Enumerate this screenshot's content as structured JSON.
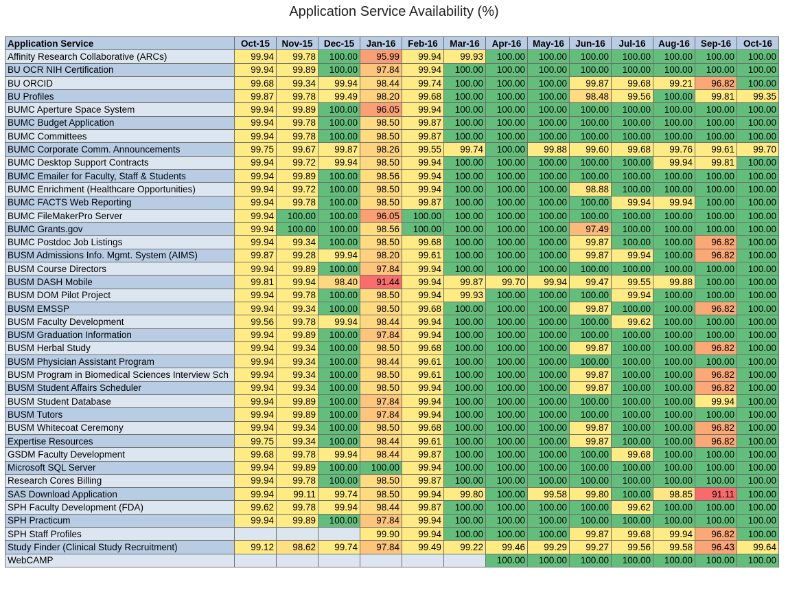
{
  "chart_data": {
    "type": "table",
    "title": "Application Service Availability (%)",
    "row_header": "Application Service",
    "columns": [
      "Oct-15",
      "Nov-15",
      "Dec-15",
      "Jan-16",
      "Feb-16",
      "Mar-16",
      "Apr-16",
      "May-16",
      "Jun-16",
      "Jul-16",
      "Aug-16",
      "Sep-16",
      "Oct-16"
    ],
    "rows": [
      {
        "service": "Affinity Research Collaborative (ARCs)",
        "values": [
          "99.94",
          "99.78",
          "100.00",
          "95.99",
          "99.94",
          "99.93",
          "100.00",
          "100.00",
          "100.00",
          "100.00",
          "100.00",
          "100.00",
          "100.00"
        ]
      },
      {
        "service": "BU OCR NIH Certification",
        "values": [
          "99.94",
          "99.89",
          "100.00",
          "97.84",
          "99.94",
          "100.00",
          "100.00",
          "100.00",
          "100.00",
          "100.00",
          "100.00",
          "100.00",
          "100.00"
        ]
      },
      {
        "service": "BU ORCID",
        "values": [
          "99.68",
          "99.34",
          "99.94",
          "98.44",
          "99.74",
          "100.00",
          "100.00",
          "100.00",
          "99.87",
          "99.68",
          "99.21",
          "96.82",
          "100.00"
        ]
      },
      {
        "service": "BU Profiles",
        "values": [
          "99.87",
          "99.78",
          "99.49",
          "98.20",
          "99.68",
          "100.00",
          "100.00",
          "100.00",
          "98.48",
          "99.56",
          "100.00",
          "99.81",
          "99.35"
        ]
      },
      {
        "service": "BUMC Aperture Space System",
        "values": [
          "99.94",
          "99.89",
          "100.00",
          "96.05",
          "99.94",
          "100.00",
          "100.00",
          "100.00",
          "100.00",
          "100.00",
          "100.00",
          "100.00",
          "100.00"
        ]
      },
      {
        "service": "BUMC Budget Application",
        "values": [
          "99.94",
          "99.78",
          "100.00",
          "98.50",
          "99.87",
          "100.00",
          "100.00",
          "100.00",
          "100.00",
          "100.00",
          "100.00",
          "100.00",
          "100.00"
        ]
      },
      {
        "service": "BUMC Committees",
        "values": [
          "99.94",
          "99.78",
          "100.00",
          "98.50",
          "99.87",
          "100.00",
          "100.00",
          "100.00",
          "100.00",
          "100.00",
          "100.00",
          "100.00",
          "100.00"
        ]
      },
      {
        "service": "BUMC Corporate Comm. Announcements",
        "values": [
          "99.75",
          "99.67",
          "99.87",
          "98.26",
          "99.55",
          "99.74",
          "100.00",
          "99.88",
          "99.60",
          "99.68",
          "99.76",
          "99.61",
          "99.70"
        ]
      },
      {
        "service": "BUMC Desktop Support Contracts",
        "values": [
          "99.94",
          "99.72",
          "99.94",
          "98.50",
          "99.94",
          "100.00",
          "100.00",
          "100.00",
          "100.00",
          "100.00",
          "99.94",
          "99.81",
          "100.00"
        ]
      },
      {
        "service": "BUMC Emailer for Faculty, Staff & Students",
        "values": [
          "99.94",
          "99.89",
          "100.00",
          "98.56",
          "99.94",
          "100.00",
          "100.00",
          "100.00",
          "100.00",
          "100.00",
          "100.00",
          "100.00",
          "100.00"
        ]
      },
      {
        "service": "BUMC Enrichment (Healthcare Opportunities)",
        "values": [
          "99.94",
          "99.72",
          "100.00",
          "98.50",
          "99.94",
          "100.00",
          "100.00",
          "100.00",
          "98.88",
          "100.00",
          "100.00",
          "100.00",
          "100.00"
        ]
      },
      {
        "service": "BUMC FACTS Web Reporting",
        "values": [
          "99.94",
          "99.78",
          "100.00",
          "98.50",
          "99.87",
          "100.00",
          "100.00",
          "100.00",
          "100.00",
          "99.94",
          "99.94",
          "100.00",
          "100.00"
        ]
      },
      {
        "service": "BUMC FileMakerPro Server",
        "values": [
          "99.94",
          "100.00",
          "100.00",
          "96.05",
          "100.00",
          "100.00",
          "100.00",
          "100.00",
          "100.00",
          "100.00",
          "100.00",
          "100.00",
          "100.00"
        ]
      },
      {
        "service": "BUMC Grants.gov",
        "values": [
          "99.94",
          "100.00",
          "100.00",
          "98.56",
          "100.00",
          "100.00",
          "100.00",
          "100.00",
          "97.49",
          "100.00",
          "100.00",
          "100.00",
          "100.00"
        ]
      },
      {
        "service": "BUMC Postdoc Job Listings",
        "values": [
          "99.94",
          "99.34",
          "100.00",
          "98.50",
          "99.68",
          "100.00",
          "100.00",
          "100.00",
          "99.87",
          "100.00",
          "100.00",
          "96.82",
          "100.00"
        ]
      },
      {
        "service": "BUSM Admissions Info. Mgmt. System (AIMS)",
        "values": [
          "99.87",
          "99.28",
          "99.94",
          "98.20",
          "99.61",
          "100.00",
          "100.00",
          "100.00",
          "99.87",
          "99.94",
          "100.00",
          "96.82",
          "100.00"
        ]
      },
      {
        "service": "BUSM Course Directors",
        "values": [
          "99.94",
          "99.89",
          "100.00",
          "97.84",
          "99.94",
          "100.00",
          "100.00",
          "100.00",
          "100.00",
          "100.00",
          "100.00",
          "100.00",
          "100.00"
        ]
      },
      {
        "service": "BUSM DASH Mobile",
        "values": [
          "99.81",
          "99.94",
          "98.40",
          "91.44",
          "99.94",
          "99.87",
          "99.70",
          "99.94",
          "99.47",
          "99.55",
          "99.88",
          "100.00",
          "100.00"
        ]
      },
      {
        "service": "BUSM DOM Pilot Project",
        "values": [
          "99.94",
          "99.78",
          "100.00",
          "98.50",
          "99.94",
          "99.93",
          "100.00",
          "100.00",
          "100.00",
          "99.94",
          "100.00",
          "100.00",
          "100.00"
        ]
      },
      {
        "service": "BUSM EMSSP",
        "values": [
          "99.94",
          "99.34",
          "100.00",
          "98.50",
          "99.68",
          "100.00",
          "100.00",
          "100.00",
          "99.87",
          "100.00",
          "100.00",
          "96.82",
          "100.00"
        ]
      },
      {
        "service": "BUSM Faculty Development",
        "values": [
          "99.56",
          "99.78",
          "99.94",
          "98.44",
          "99.94",
          "100.00",
          "100.00",
          "100.00",
          "100.00",
          "99.62",
          "100.00",
          "100.00",
          "100.00"
        ]
      },
      {
        "service": "BUSM Graduation Information",
        "values": [
          "99.94",
          "99.89",
          "100.00",
          "97.84",
          "99.94",
          "100.00",
          "100.00",
          "100.00",
          "100.00",
          "100.00",
          "100.00",
          "100.00",
          "100.00"
        ]
      },
      {
        "service": "BUSM Herbal Study",
        "values": [
          "99.94",
          "99.34",
          "100.00",
          "98.50",
          "99.68",
          "100.00",
          "100.00",
          "100.00",
          "99.87",
          "100.00",
          "100.00",
          "96.82",
          "100.00"
        ]
      },
      {
        "service": "BUSM Physician Assistant Program",
        "values": [
          "99.94",
          "99.34",
          "100.00",
          "98.44",
          "99.61",
          "100.00",
          "100.00",
          "100.00",
          "100.00",
          "100.00",
          "100.00",
          "100.00",
          "100.00"
        ]
      },
      {
        "service": "BUSM Program in Biomedical Sciences Interview Sch",
        "values": [
          "99.94",
          "99.34",
          "100.00",
          "98.50",
          "99.61",
          "100.00",
          "100.00",
          "100.00",
          "99.87",
          "100.00",
          "100.00",
          "96.82",
          "100.00"
        ]
      },
      {
        "service": "BUSM Student Affairs Scheduler",
        "values": [
          "99.94",
          "99.34",
          "100.00",
          "98.50",
          "99.94",
          "100.00",
          "100.00",
          "100.00",
          "99.87",
          "100.00",
          "100.00",
          "96.82",
          "100.00"
        ]
      },
      {
        "service": "BUSM Student Database",
        "values": [
          "99.94",
          "99.89",
          "100.00",
          "97.84",
          "99.94",
          "100.00",
          "100.00",
          "100.00",
          "100.00",
          "100.00",
          "100.00",
          "99.94",
          "100.00"
        ]
      },
      {
        "service": "BUSM Tutors",
        "values": [
          "99.94",
          "99.89",
          "100.00",
          "97.84",
          "99.94",
          "100.00",
          "100.00",
          "100.00",
          "100.00",
          "100.00",
          "100.00",
          "100.00",
          "100.00"
        ]
      },
      {
        "service": "BUSM Whitecoat Ceremony",
        "values": [
          "99.94",
          "99.34",
          "100.00",
          "98.50",
          "99.68",
          "100.00",
          "100.00",
          "100.00",
          "99.87",
          "100.00",
          "100.00",
          "96.82",
          "100.00"
        ]
      },
      {
        "service": "Expertise Resources",
        "values": [
          "99.75",
          "99.34",
          "100.00",
          "98.44",
          "99.61",
          "100.00",
          "100.00",
          "100.00",
          "99.87",
          "100.00",
          "100.00",
          "96.82",
          "100.00"
        ]
      },
      {
        "service": "GSDM Faculty Development",
        "values": [
          "99.68",
          "99.78",
          "99.94",
          "98.44",
          "99.87",
          "100.00",
          "100.00",
          "100.00",
          "100.00",
          "99.68",
          "100.00",
          "100.00",
          "100.00"
        ]
      },
      {
        "service": "Microsoft SQL Server",
        "values": [
          "99.94",
          "99.89",
          "100.00",
          "100.00",
          "99.94",
          "100.00",
          "100.00",
          "100.00",
          "100.00",
          "100.00",
          "100.00",
          "100.00",
          "100.00"
        ]
      },
      {
        "service": "Research Cores Billing",
        "values": [
          "99.94",
          "99.78",
          "100.00",
          "98.50",
          "99.87",
          "100.00",
          "100.00",
          "100.00",
          "100.00",
          "100.00",
          "100.00",
          "100.00",
          "100.00"
        ]
      },
      {
        "service": "SAS Download Application",
        "values": [
          "99.94",
          "99.11",
          "99.74",
          "98.50",
          "99.94",
          "99.80",
          "100.00",
          "99.58",
          "99.80",
          "100.00",
          "98.85",
          "91.11",
          "100.00"
        ]
      },
      {
        "service": "SPH Faculty Development (FDA)",
        "values": [
          "99.62",
          "99.78",
          "99.94",
          "98.44",
          "99.87",
          "100.00",
          "100.00",
          "100.00",
          "100.00",
          "99.62",
          "100.00",
          "100.00",
          "100.00"
        ]
      },
      {
        "service": "SPH Practicum",
        "values": [
          "99.94",
          "99.89",
          "100.00",
          "97.84",
          "99.94",
          "100.00",
          "100.00",
          "100.00",
          "100.00",
          "100.00",
          "100.00",
          "100.00",
          "100.00"
        ]
      },
      {
        "service": "SPH Staff Profiles",
        "values": [
          "",
          "",
          "",
          "99.90",
          "99.94",
          "100.00",
          "100.00",
          "100.00",
          "99.87",
          "99.68",
          "99.94",
          "96.82",
          "100.00"
        ]
      },
      {
        "service": "Study Finder (Clinical Study Recruitment)",
        "values": [
          "99.12",
          "98.62",
          "99.74",
          "97.84",
          "99.49",
          "99.22",
          "99.46",
          "99.29",
          "99.27",
          "99.56",
          "99.58",
          "96.43",
          "99.64"
        ]
      },
      {
        "service": "WebCAMP",
        "values": [
          "",
          "",
          "",
          "",
          "",
          "",
          "100.00",
          "100.00",
          "100.00",
          "100.00",
          "100.00",
          "100.00",
          "100.00"
        ]
      }
    ],
    "color_scale": {
      "best": "#63be7b",
      "high": "#ffeb84",
      "mid": "#fbaa77",
      "worst": "#f8696b"
    }
  }
}
